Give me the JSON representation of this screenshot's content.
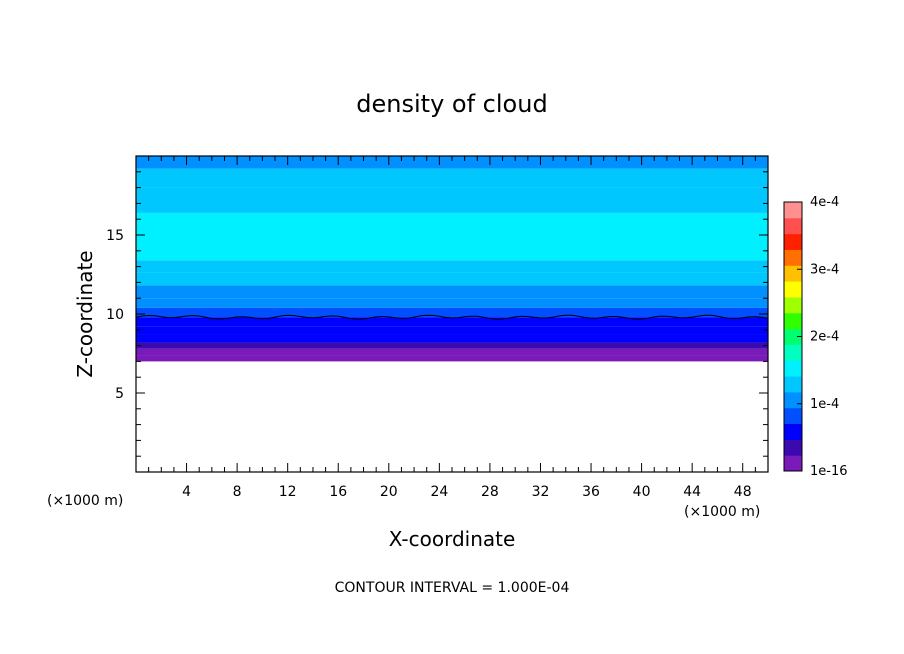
{
  "chart_data": {
    "type": "heatmap",
    "title": "density of cloud",
    "xlabel": "X-coordinate",
    "ylabel": "Z-coordinate",
    "x_unit": "(×1000 m)",
    "y_unit": "(×1000 m)",
    "xlim": [
      0,
      50
    ],
    "ylim": [
      0,
      20
    ],
    "x_ticks": [
      4,
      8,
      12,
      16,
      20,
      24,
      28,
      32,
      36,
      40,
      44,
      48
    ],
    "y_ticks": [
      5,
      10,
      15
    ],
    "cloud_base_z": 7.0,
    "contour_line_z": 9.8,
    "colorbar": {
      "ticks": [
        "1e-16",
        "1e-4",
        "2e-4",
        "3e-4",
        "4e-4"
      ],
      "tick_values": [
        0,
        0.0001,
        0.0002,
        0.0003,
        0.0004
      ],
      "colors": [
        "#7a1ab8",
        "#3a0ab0",
        "#0000ff",
        "#0050ff",
        "#0090ff",
        "#00c8ff",
        "#00f0ff",
        "#00ffc0",
        "#00ff70",
        "#30ff00",
        "#a0ff00",
        "#ffff00",
        "#ffc000",
        "#ff7000",
        "#ff2000",
        "#ff5050",
        "#ff9090"
      ]
    },
    "layers": [
      {
        "z0": 7.0,
        "z1": 7.4,
        "value": 5e-06
      },
      {
        "z0": 7.4,
        "z1": 7.8,
        "value": 2e-05
      },
      {
        "z0": 7.8,
        "z1": 8.2,
        "value": 4e-05
      },
      {
        "z0": 8.2,
        "z1": 8.7,
        "value": 5e-05
      },
      {
        "z0": 8.7,
        "z1": 9.2,
        "value": 6e-05
      },
      {
        "z0": 9.2,
        "z1": 9.8,
        "value": 7e-05
      },
      {
        "z0": 9.8,
        "z1": 10.4,
        "value": 9e-05
      },
      {
        "z0": 10.4,
        "z1": 11.0,
        "value": 0.0001
      },
      {
        "z0": 11.0,
        "z1": 11.8,
        "value": 0.00011
      },
      {
        "z0": 11.8,
        "z1": 12.6,
        "value": 0.000125
      },
      {
        "z0": 12.6,
        "z1": 13.4,
        "value": 0.00014
      },
      {
        "z0": 13.4,
        "z1": 16.4,
        "value": 0.00016
      },
      {
        "z0": 16.4,
        "z1": 18.0,
        "value": 0.00014
      },
      {
        "z0": 18.0,
        "z1": 19.2,
        "value": 0.000125
      },
      {
        "z0": 19.2,
        "z1": 20.0,
        "value": 0.00011
      }
    ],
    "contour_interval_text": "CONTOUR INTERVAL = 1.000E-04"
  }
}
